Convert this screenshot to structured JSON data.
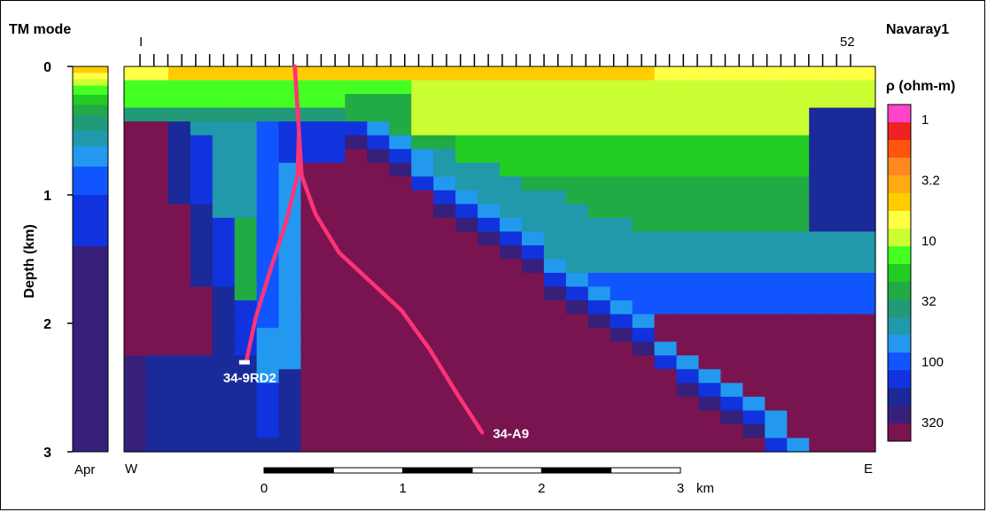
{
  "chart_data": {
    "type": "heatmap",
    "mode_label": "TM mode",
    "site_label": "Navaray1",
    "site_first": "I",
    "site_last": "52",
    "site_count": 52,
    "ylabel": "Depth (km)",
    "yticks": [
      0,
      1,
      2,
      3
    ],
    "ylim": [
      0,
      3
    ],
    "west_label": "W",
    "east_label": "E",
    "scale_bar": {
      "ticks": [
        "0",
        "1",
        "2",
        "3"
      ],
      "unit": "km",
      "length_km": 3
    },
    "apriori_label": "Apr",
    "colorbar": {
      "title": "ρ (ohm-m)",
      "labels": [
        "1",
        "3.2",
        "10",
        "32",
        "100",
        "320"
      ],
      "colors": [
        "#ff44cc",
        "#ee2222",
        "#ff5511",
        "#ff8822",
        "#ffaa11",
        "#ffcc00",
        "#ffff44",
        "#ccff33",
        "#44ff22",
        "#22cc22",
        "#22aa44",
        "#229977",
        "#2299aa",
        "#2299ee",
        "#1155ff",
        "#1133dd",
        "#1a2a99",
        "#36207a",
        "#7a1450"
      ]
    },
    "apriori_model": [
      {
        "depth_top": 0.0,
        "color": "#ffcc00"
      },
      {
        "depth_top": 0.05,
        "color": "#ffff44"
      },
      {
        "depth_top": 0.1,
        "color": "#ccff33"
      },
      {
        "depth_top": 0.15,
        "color": "#44ff22"
      },
      {
        "depth_top": 0.22,
        "color": "#22cc22"
      },
      {
        "depth_top": 0.3,
        "color": "#22aa44"
      },
      {
        "depth_top": 0.38,
        "color": "#229977"
      },
      {
        "depth_top": 0.5,
        "color": "#2299aa"
      },
      {
        "depth_top": 0.62,
        "color": "#2299ee"
      },
      {
        "depth_top": 0.78,
        "color": "#1155ff"
      },
      {
        "depth_top": 1.0,
        "color": "#1133dd"
      },
      {
        "depth_top": 1.4,
        "color": "#36207a"
      },
      {
        "depth_top": 3.0,
        "color": "#36207a"
      }
    ],
    "wells": [
      {
        "name": "34-9RD2",
        "path": [
          [
            1.23,
            0.0
          ],
          [
            1.26,
            0.5
          ],
          [
            1.25,
            0.85
          ],
          [
            1.17,
            1.2
          ],
          [
            1.05,
            1.6
          ],
          [
            0.95,
            1.95
          ],
          [
            0.88,
            2.3
          ]
        ]
      },
      {
        "name": "34-A9",
        "path": [
          [
            1.23,
            0.0
          ],
          [
            1.26,
            0.5
          ],
          [
            1.28,
            0.85
          ],
          [
            1.38,
            1.15
          ],
          [
            1.55,
            1.45
          ],
          [
            1.75,
            1.65
          ],
          [
            2.0,
            1.9
          ],
          [
            2.2,
            2.2
          ],
          [
            2.4,
            2.55
          ],
          [
            2.58,
            2.85
          ]
        ]
      }
    ]
  }
}
